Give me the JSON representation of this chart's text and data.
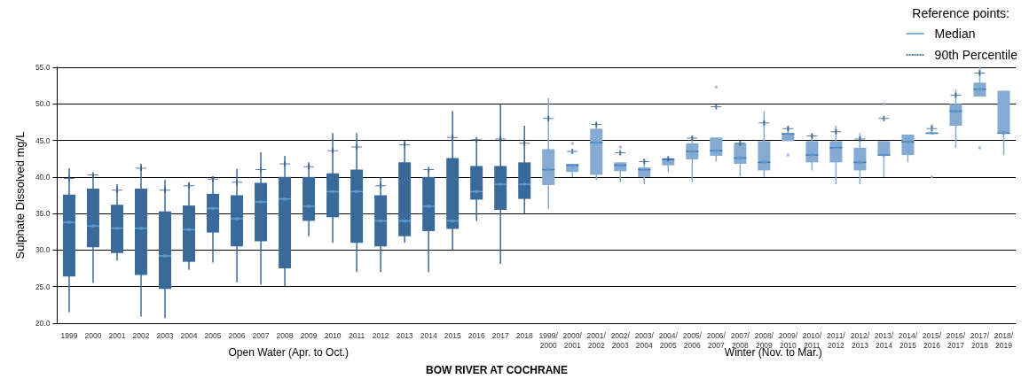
{
  "chart_data": {
    "type": "box",
    "xlabel": "BOW RIVER AT COCHRANE",
    "ylabel": "Sulphate Dissolved mg/L",
    "legend_title": "Reference points:",
    "legend": "top right",
    "grid": "y",
    "categories": [
      "1999",
      "2000",
      "2001",
      "2002",
      "2003",
      "2004",
      "2005",
      "2006",
      "2007",
      "2008",
      "2009",
      "2010",
      "2011",
      "2012",
      "2013",
      "2014",
      "2015",
      "2016",
      "2017",
      "2018",
      "1999/2000",
      "2000/2001",
      "2001/2002",
      "2002/2003",
      "2003/2004",
      "2004/2005",
      "2005/2006",
      "2006/2007",
      "2007/2008",
      "2008/2009",
      "2009/2010",
      "2010/2011",
      "2011/2012",
      "2012/2013",
      "2013/2014",
      "2014/2015",
      "2015/2016",
      "2016/2017",
      "2017/2018",
      "2018/2019"
    ],
    "ylim": [
      20,
      55
    ],
    "yticks": [
      {
        "value": 20,
        "label": "20.0"
      },
      {
        "value": 25,
        "label": "25.0"
      },
      {
        "value": 30,
        "label": "30.0"
      },
      {
        "value": 35,
        "label": "35.0"
      },
      {
        "value": 40,
        "label": "40.0"
      },
      {
        "value": 45,
        "label": "45.0"
      },
      {
        "value": 50,
        "label": "50.0"
      },
      {
        "value": 55,
        "label": "55.0"
      }
    ],
    "annotations": [
      "Open Water (Apr. to Oct.)",
      "Winter (Nov. to Mar.)"
    ],
    "series": [
      {
        "color": "#3a6a99",
        "boxes": [
          {
            "low": 21.5,
            "q1": 26.4,
            "median": 33.8,
            "q3": 37.6,
            "high": 41.2
          },
          {
            "low": 25.5,
            "q1": 30.4,
            "median": 33.3,
            "q3": 38.4,
            "high": 40.3
          },
          {
            "low": 28.6,
            "q1": 29.6,
            "median": 33.0,
            "q3": 36.2,
            "high": 39.0
          },
          {
            "low": 20.9,
            "q1": 26.6,
            "median": 33.0,
            "q3": 38.4,
            "high": 41.8
          },
          {
            "low": 20.7,
            "q1": 24.7,
            "median": 29.2,
            "q3": 35.3,
            "high": 39.6
          },
          {
            "low": 27.3,
            "q1": 28.4,
            "median": 32.8,
            "q3": 36.1,
            "high": 39.3
          },
          {
            "low": 28.3,
            "q1": 32.4,
            "median": 35.7,
            "q3": 37.7,
            "high": 40.1
          },
          {
            "low": 25.6,
            "q1": 30.5,
            "median": 34.3,
            "q3": 37.5,
            "high": 41.1
          },
          {
            "low": 25.3,
            "q1": 31.2,
            "median": 36.6,
            "q3": 39.2,
            "high": 43.4
          },
          {
            "low": 25.1,
            "q1": 27.5,
            "median": 37.0,
            "q3": 40.0,
            "high": 42.9
          },
          {
            "low": 31.9,
            "q1": 34.0,
            "median": 36.0,
            "q3": 40.0,
            "high": 42.0
          },
          {
            "low": 31.0,
            "q1": 34.5,
            "median": 38.0,
            "q3": 40.5,
            "high": 46.0
          },
          {
            "low": 27.0,
            "q1": 31.0,
            "median": 38.0,
            "q3": 41.0,
            "high": 46.0
          },
          {
            "low": 27.0,
            "q1": 30.5,
            "median": 34.0,
            "q3": 37.5,
            "high": 39.9
          },
          {
            "low": 31.0,
            "q1": 31.9,
            "median": 34.0,
            "q3": 42.0,
            "high": 45.0
          },
          {
            "low": 27.0,
            "q1": 32.6,
            "median": 36.0,
            "q3": 40.0,
            "high": 41.0
          },
          {
            "low": 30.0,
            "q1": 32.9,
            "median": 34.0,
            "q3": 42.6,
            "high": 49.0
          },
          {
            "low": 34.0,
            "q1": 36.9,
            "median": 38.0,
            "q3": 41.5,
            "high": 45.1
          },
          {
            "low": 28.1,
            "q1": 35.5,
            "median": 39.0,
            "q3": 41.5,
            "high": 49.9
          },
          {
            "low": 35.0,
            "q1": 37.0,
            "median": 39.0,
            "q3": 42.0,
            "high": 47.0
          },
          null,
          null,
          null,
          null,
          null,
          null,
          null,
          null,
          null,
          null,
          null,
          null,
          null,
          null,
          null,
          null,
          null,
          null,
          null,
          null
        ]
      },
      {
        "color": "#86abd3",
        "boxes": [
          null,
          null,
          null,
          null,
          null,
          null,
          null,
          null,
          null,
          null,
          null,
          null,
          null,
          null,
          null,
          null,
          null,
          null,
          null,
          null,
          {
            "low": 35.6,
            "q1": 38.9,
            "median": 41.0,
            "q3": 43.8,
            "high": 50.8
          },
          {
            "low": 40.0,
            "q1": 40.7,
            "median": 41.6,
            "q3": 41.8,
            "high": 41.8,
            "outliers": [
              44.6
            ]
          },
          {
            "low": 39.6,
            "q1": 40.3,
            "median": 44.7,
            "q3": 46.6,
            "high": 47.5
          },
          {
            "low": 39.3,
            "q1": 40.8,
            "median": 41.6,
            "q3": 42.0,
            "high": 42.0,
            "outliers": [
              44.1
            ]
          },
          {
            "low": 39.0,
            "q1": 40.0,
            "median": 41.0,
            "q3": 41.3,
            "high": 42.5
          },
          {
            "low": 40.7,
            "q1": 41.6,
            "median": 42.4,
            "q3": 42.5,
            "high": 42.5
          },
          {
            "low": 39.3,
            "q1": 42.4,
            "median": 43.5,
            "q3": 44.6,
            "high": 45.6
          },
          {
            "low": 42.1,
            "q1": 42.9,
            "median": 43.6,
            "q3": 45.4,
            "high": 45.4,
            "outliers": [
              52.3
            ]
          },
          {
            "low": 40.1,
            "q1": 41.8,
            "median": 42.6,
            "q3": 44.6,
            "high": 44.6
          },
          {
            "low": 40.0,
            "q1": 40.9,
            "median": 42.0,
            "q3": 44.9,
            "high": 49.0
          },
          {
            "low": 44.9,
            "q1": 44.9,
            "median": 45.9,
            "q3": 46.0,
            "high": 47.0,
            "outliers": [
              43.0
            ]
          },
          {
            "low": 40.9,
            "q1": 42.0,
            "median": 43.0,
            "q3": 44.9,
            "high": 45.9
          },
          {
            "low": 39.0,
            "q1": 42.0,
            "median": 44.0,
            "q3": 44.9,
            "high": 47.0
          },
          {
            "low": 39.0,
            "q1": 40.9,
            "median": 42.0,
            "q3": 44.0,
            "high": 46.0
          },
          {
            "low": 40.0,
            "q1": 43.0,
            "median": 43.0,
            "q3": 44.9,
            "high": 44.9,
            "outliers": [
              50.0
            ]
          },
          {
            "low": 42.0,
            "q1": 43.0,
            "median": 44.8,
            "q3": 45.8,
            "high": 45.8
          },
          {
            "low": 46.0,
            "q1": 46.0,
            "median": 46.0,
            "q3": 46.0,
            "high": 46.0,
            "outliers": [
              47.0,
              40.0
            ]
          },
          {
            "low": 44.0,
            "q1": 47.0,
            "median": 49.0,
            "q3": 50.0,
            "high": 52.0
          },
          {
            "low": 51.0,
            "q1": 51.0,
            "median": 52.0,
            "q3": 52.9,
            "high": 55.0,
            "outliers": [
              44.0
            ]
          },
          {
            "low": 43.0,
            "q1": 45.9,
            "median": 46.0,
            "q3": 51.8,
            "high": 51.8
          }
        ]
      },
      {
        "type": "scatter",
        "name": "Median",
        "color": "#5b9bd5",
        "line_style": "solid",
        "marker": "diamond",
        "values": [
          33.8,
          33.3,
          33.0,
          33.0,
          29.2,
          32.8,
          35.7,
          34.3,
          36.6,
          37.0,
          36.0,
          38.0,
          38.0,
          34.0,
          34.0,
          36.0,
          34.0,
          38.0,
          39.0,
          39.0,
          41.0,
          41.6,
          44.7,
          41.6,
          41.0,
          null,
          43.5,
          43.6,
          42.6,
          42.0,
          45.9,
          43.0,
          44.0,
          42.0,
          43.0,
          44.8,
          46.0,
          49.0,
          52.0,
          46.0
        ]
      },
      {
        "type": "scatter",
        "name": "90th Percentile",
        "color": "#2e5c8a",
        "line_style": "dotted",
        "marker": "cross",
        "values": [
          39.8,
          40.3,
          38.2,
          41.2,
          38.2,
          38.8,
          39.7,
          39.3,
          41.0,
          41.8,
          41.4,
          43.6,
          44.1,
          38.8,
          44.4,
          41.0,
          45.4,
          45.1,
          45.2,
          44.6,
          48.0,
          43.5,
          47.2,
          43.3,
          42.1,
          42.5,
          45.3,
          49.6,
          44.6,
          47.4,
          46.6,
          45.6,
          46.2,
          45.2,
          48.0,
          null,
          46.6,
          51.2,
          54.2,
          null
        ]
      }
    ]
  }
}
